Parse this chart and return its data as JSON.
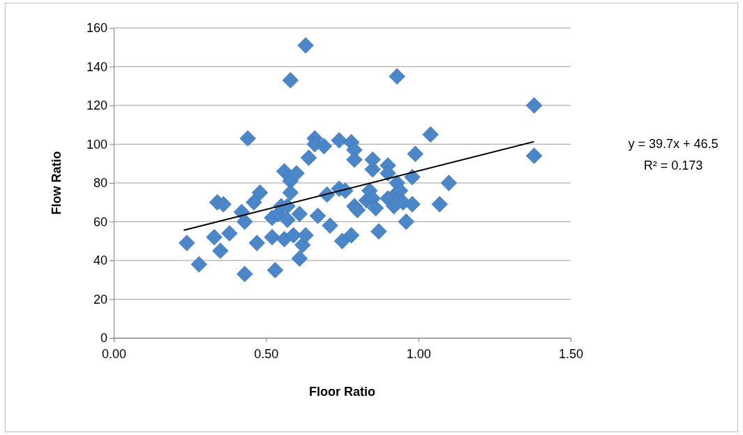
{
  "chart_data": {
    "type": "scatter",
    "xlabel": "Floor Ratio",
    "ylabel": "Flow Ratio",
    "xlim": [
      0,
      1.5
    ],
    "xticks": [
      {
        "value": 0,
        "label": "0.00"
      },
      {
        "value": 0.5,
        "label": "0.50"
      },
      {
        "value": 1,
        "label": "1.00"
      },
      {
        "value": 1.5,
        "label": "1.50"
      }
    ],
    "ylim": [
      0,
      160
    ],
    "yticks": [
      0,
      20,
      40,
      60,
      80,
      100,
      120,
      140,
      160
    ],
    "grid": "y",
    "marker": "diamond",
    "annotations": [
      "y = 39.7x + 46.5",
      "R² = 0.173"
    ],
    "series": [
      {
        "type": "scatter",
        "color": "#4a86c8",
        "x": [
          0.24,
          0.28,
          0.33,
          0.34,
          0.36,
          0.35,
          0.38,
          0.43,
          0.44,
          0.42,
          0.43,
          0.46,
          0.47,
          0.48,
          0.53,
          0.52,
          0.52,
          0.54,
          0.55,
          0.56,
          0.56,
          0.57,
          0.57,
          0.58,
          0.58,
          0.58,
          0.59,
          0.6,
          0.61,
          0.61,
          0.62,
          0.63,
          0.64,
          0.63,
          0.66,
          0.66,
          0.67,
          0.69,
          0.7,
          0.71,
          0.74,
          0.74,
          0.75,
          0.76,
          0.78,
          0.78,
          0.79,
          0.79,
          0.79,
          0.8,
          0.83,
          0.84,
          0.85,
          0.85,
          0.85,
          0.86,
          0.87,
          0.9,
          0.9,
          0.9,
          0.92,
          0.93,
          0.93,
          0.93,
          0.94,
          0.95,
          0.96,
          0.98,
          0.98,
          0.99,
          1.04,
          1.07,
          1.1,
          1.38,
          1.38
        ],
        "values": [
          49,
          38,
          52,
          70,
          69,
          45,
          54,
          33,
          103,
          65,
          60,
          70,
          49,
          75,
          35,
          52,
          62,
          64,
          68,
          86,
          51,
          68,
          61,
          133,
          81,
          75,
          53,
          85,
          64,
          41,
          48,
          53,
          93,
          151,
          103,
          100,
          63,
          99,
          74,
          58,
          77,
          102,
          50,
          76,
          101,
          53,
          97,
          92,
          68,
          66,
          71,
          76,
          87,
          92,
          72,
          67,
          55,
          89,
          85,
          72,
          68,
          75,
          135,
          80,
          76,
          70,
          60,
          83,
          69,
          95,
          105,
          69,
          80,
          120,
          94
        ]
      },
      {
        "type": "line",
        "color": "#000000",
        "marker": "none",
        "line_style": "solid",
        "x": [
          0.23,
          1.38
        ],
        "values": [
          55.6,
          101.3
        ]
      }
    ]
  }
}
